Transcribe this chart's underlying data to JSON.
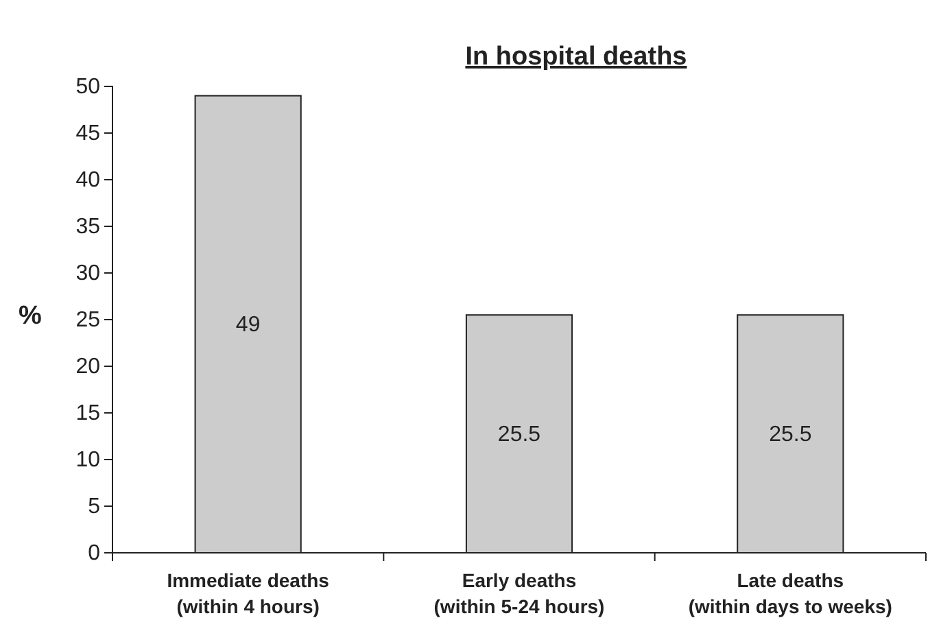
{
  "chart_data": {
    "type": "bar",
    "title": "In hospital deaths",
    "ylabel": "%",
    "categories": [
      "Immediate deaths\n(within 4 hours)",
      "Early deaths\n(within 5-24 hours)",
      "Late deaths\n(within days to weeks)"
    ],
    "values": [
      49,
      25.5,
      25.5
    ],
    "color": "#cccccc",
    "ylim": [
      0,
      50
    ],
    "yticks": [
      0,
      5,
      10,
      15,
      20,
      25,
      30,
      35,
      40,
      45,
      50
    ],
    "data_labels": true,
    "grid": false
  }
}
